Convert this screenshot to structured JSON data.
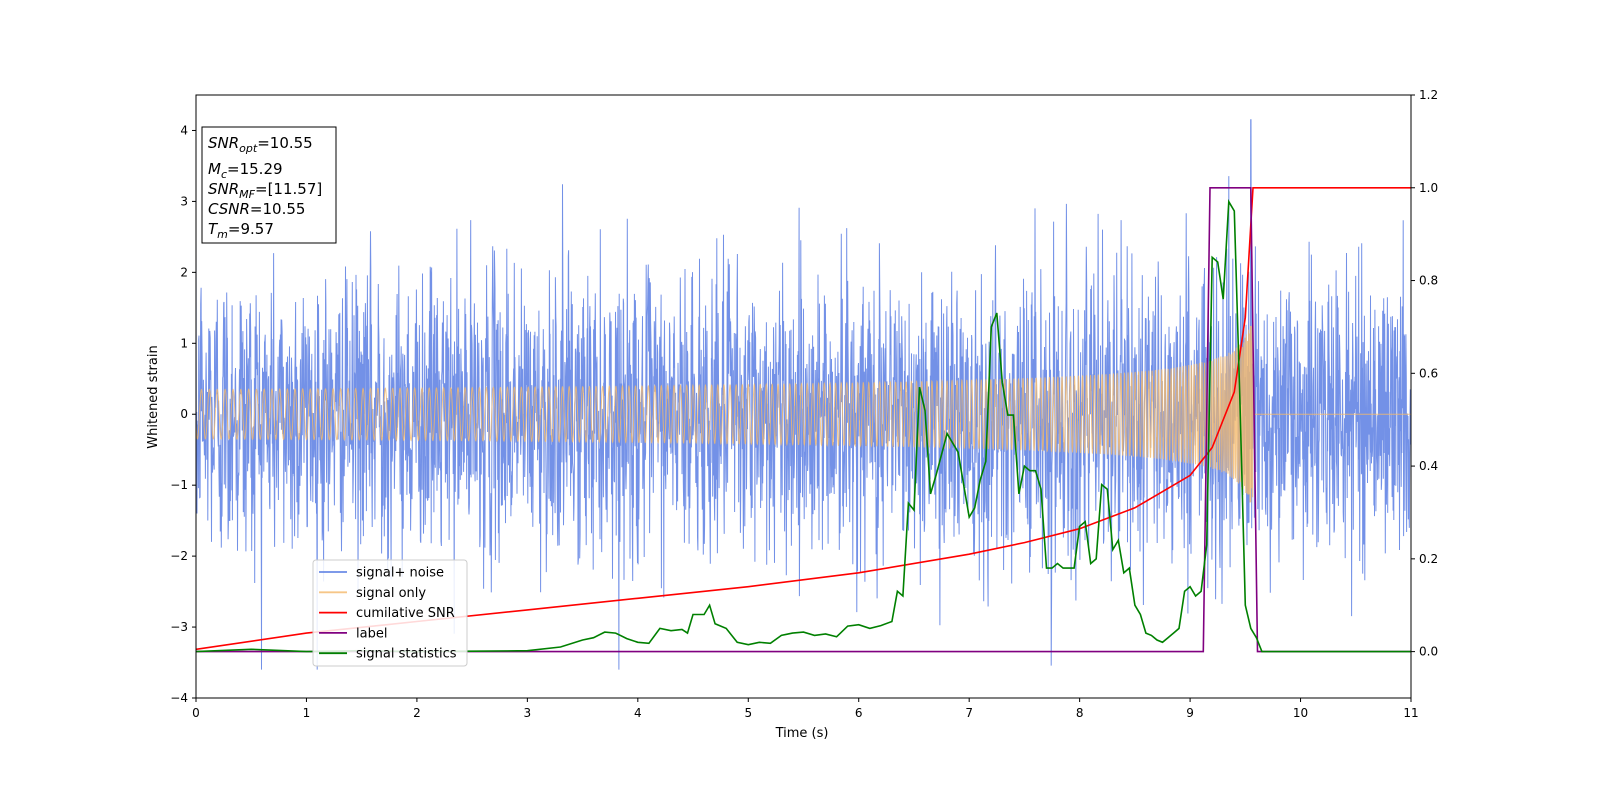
{
  "chart_data": {
    "type": "line",
    "xlabel": "Time (s)",
    "ylabel": "Whitened strain",
    "xlim": [
      0,
      11
    ],
    "ylim": [
      -4,
      4.5
    ],
    "y2lim": [
      -0.1,
      1.2
    ],
    "xticks": [
      "0",
      "1",
      "2",
      "3",
      "4",
      "5",
      "6",
      "7",
      "8",
      "9",
      "10",
      "11"
    ],
    "yticks": [
      "−4",
      "−3",
      "−2",
      "−1",
      "0",
      "1",
      "2",
      "3",
      "4"
    ],
    "y2ticks": [
      "0.0",
      "0.2",
      "0.4",
      "0.6",
      "0.8",
      "1.0",
      "1.2"
    ],
    "grid": false,
    "legend_position": "lower-left",
    "info_box": {
      "snr_opt_label": "SNR",
      "snr_opt_sub": "opt",
      "snr_opt_value": "=10.55",
      "mc_label": "M",
      "mc_sub": "c",
      "mc_value": "=15.29",
      "snr_mf_label": "SNR",
      "snr_mf_sub": "MF",
      "snr_mf_value": "=[11.57]",
      "csnr_label": "CSNR",
      "csnr_value": "=10.55",
      "tm_label": "T",
      "tm_sub": "m",
      "tm_value": "=9.57"
    },
    "series": [
      {
        "name": "signal+ noise",
        "color": "#6b8be6",
        "axis": "left",
        "approx_range": [
          -3.6,
          4.15
        ],
        "peak_x": 9.55,
        "peak_y": 4.15
      },
      {
        "name": "signal only",
        "color": "#f4b96b",
        "axis": "left",
        "chirp_start": 0,
        "chirp_merge": 9.57,
        "peak_amplitude": 1.2
      },
      {
        "name": "cumilative SNR",
        "color": "#ff0000",
        "axis": "right",
        "x": [
          0,
          1,
          2,
          3,
          4,
          5,
          6,
          7,
          7.5,
          8,
          8.5,
          9,
          9.2,
          9.4,
          9.5,
          9.57,
          11
        ],
        "y": [
          0.005,
          0.04,
          0.065,
          0.09,
          0.115,
          0.14,
          0.17,
          0.21,
          0.235,
          0.265,
          0.31,
          0.38,
          0.44,
          0.56,
          0.72,
          1.0,
          1.0
        ]
      },
      {
        "name": "label",
        "color": "#800080",
        "axis": "right",
        "x": [
          0,
          9.12,
          9.18,
          9.55,
          9.61,
          11
        ],
        "y": [
          0,
          0,
          1,
          1,
          0,
          0
        ]
      },
      {
        "name": "signal statistics",
        "color": "#008000",
        "axis": "right",
        "x": [
          0,
          0.5,
          1,
          1.5,
          2,
          2.5,
          3,
          3.3,
          3.5,
          3.6,
          3.7,
          3.8,
          3.9,
          4.0,
          4.1,
          4.2,
          4.3,
          4.4,
          4.45,
          4.5,
          4.6,
          4.65,
          4.7,
          4.8,
          4.9,
          5.0,
          5.1,
          5.2,
          5.3,
          5.4,
          5.5,
          5.6,
          5.7,
          5.8,
          5.9,
          6.0,
          6.1,
          6.2,
          6.3,
          6.35,
          6.4,
          6.45,
          6.5,
          6.55,
          6.6,
          6.65,
          6.7,
          6.8,
          6.9,
          7.0,
          7.05,
          7.1,
          7.15,
          7.2,
          7.25,
          7.3,
          7.35,
          7.4,
          7.45,
          7.5,
          7.55,
          7.6,
          7.65,
          7.7,
          7.75,
          7.8,
          7.85,
          7.9,
          7.95,
          8.0,
          8.05,
          8.1,
          8.15,
          8.2,
          8.25,
          8.3,
          8.35,
          8.4,
          8.45,
          8.5,
          8.55,
          8.6,
          8.65,
          8.7,
          8.75,
          8.8,
          8.85,
          8.9,
          8.95,
          9.0,
          9.05,
          9.1,
          9.15,
          9.2,
          9.25,
          9.3,
          9.35,
          9.4,
          9.45,
          9.5,
          9.55,
          9.6,
          9.65,
          9.7,
          9.8,
          10,
          11
        ],
        "y": [
          0.0,
          0.005,
          0.0,
          0.002,
          0.0,
          0.001,
          0.002,
          0.01,
          0.025,
          0.03,
          0.042,
          0.04,
          0.028,
          0.02,
          0.018,
          0.05,
          0.045,
          0.048,
          0.04,
          0.08,
          0.08,
          0.1,
          0.06,
          0.05,
          0.02,
          0.015,
          0.02,
          0.018,
          0.035,
          0.04,
          0.042,
          0.035,
          0.038,
          0.032,
          0.055,
          0.058,
          0.05,
          0.056,
          0.065,
          0.13,
          0.12,
          0.32,
          0.305,
          0.57,
          0.52,
          0.34,
          0.38,
          0.47,
          0.43,
          0.29,
          0.31,
          0.37,
          0.41,
          0.7,
          0.73,
          0.58,
          0.51,
          0.51,
          0.34,
          0.4,
          0.39,
          0.39,
          0.35,
          0.18,
          0.18,
          0.19,
          0.18,
          0.18,
          0.18,
          0.27,
          0.28,
          0.19,
          0.2,
          0.36,
          0.35,
          0.22,
          0.24,
          0.17,
          0.18,
          0.1,
          0.08,
          0.04,
          0.035,
          0.025,
          0.02,
          0.03,
          0.04,
          0.05,
          0.13,
          0.14,
          0.12,
          0.13,
          0.23,
          0.85,
          0.84,
          0.76,
          0.97,
          0.95,
          0.55,
          0.1,
          0.05,
          0.03,
          0.0,
          0.0,
          0.0,
          0.0,
          0.0
        ]
      }
    ]
  }
}
